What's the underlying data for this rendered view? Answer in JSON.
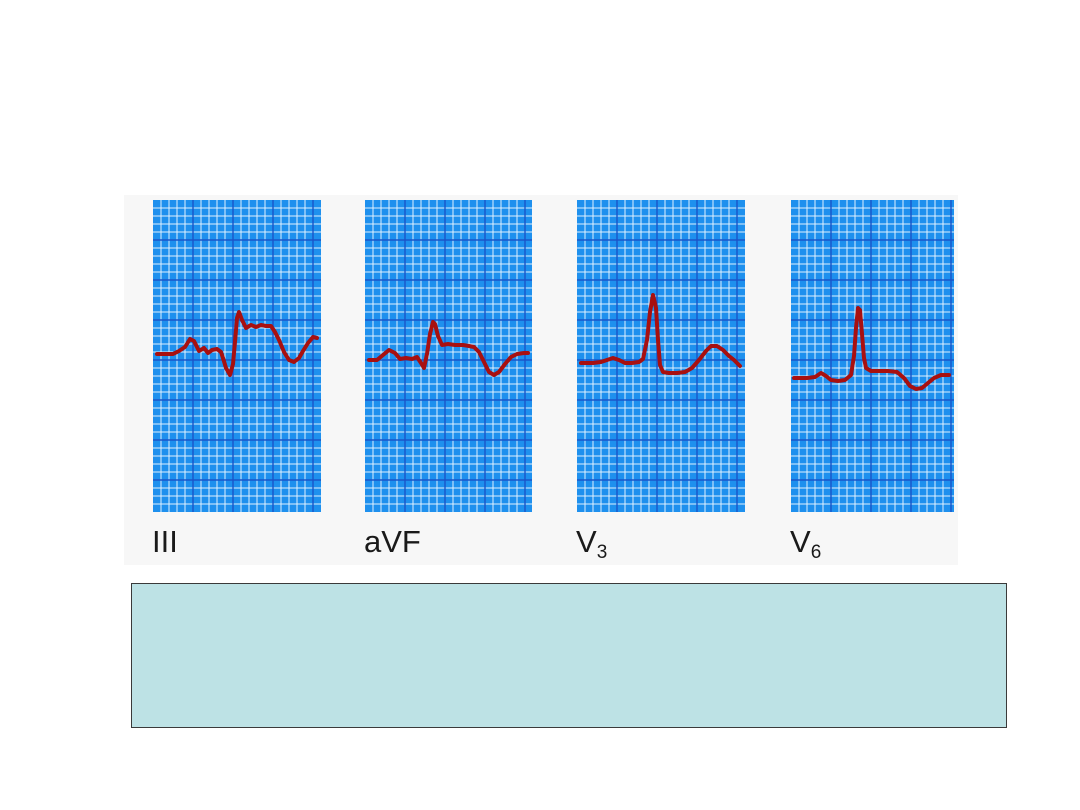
{
  "figure": {
    "grid_color": "#1e90ee",
    "grid_line_color": "#dff1ff",
    "grid_major_line_color": "#1a55c8",
    "trace_color": "#a81010",
    "leads": [
      {
        "name": "III",
        "label_main": "III",
        "label_sub": ""
      },
      {
        "name": "aVF",
        "label_main": "aVF",
        "label_sub": ""
      },
      {
        "name": "V3",
        "label_main": "V",
        "label_sub": "3"
      },
      {
        "name": "V6",
        "label_main": "V",
        "label_sub": "6"
      }
    ]
  },
  "caption": {
    "text": "",
    "background": "#bde2e5"
  }
}
